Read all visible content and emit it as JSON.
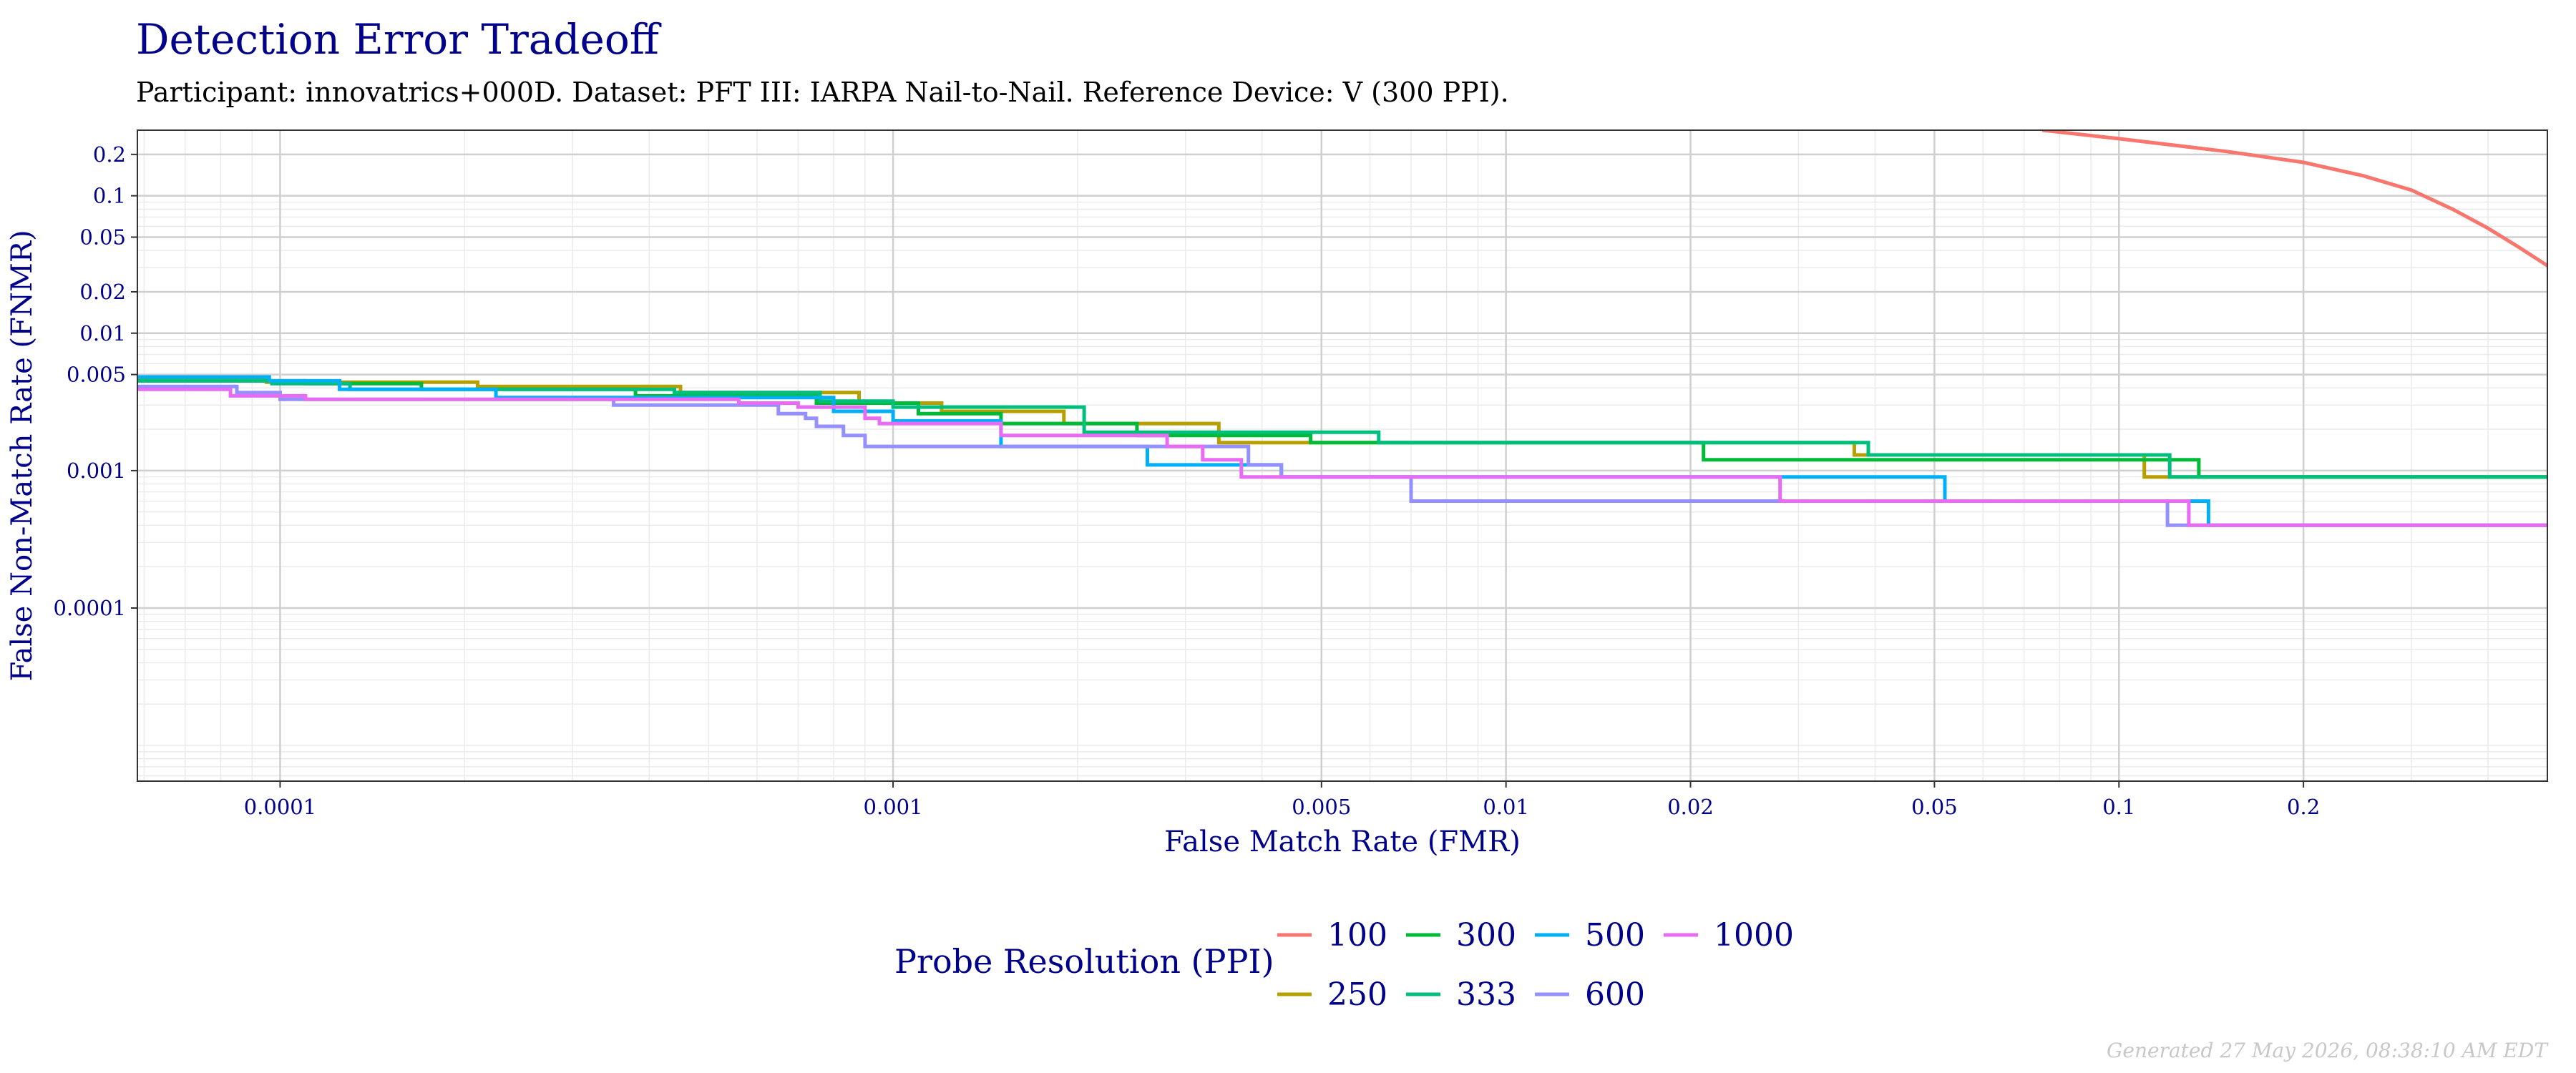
{
  "chart_data": {
    "type": "line",
    "title": "Detection Error Tradeoff",
    "subtitle": "Participant: innovatrics+000D. Dataset: PFT III: IARPA Nail-to-Nail. Reference Device: V (300 PPI).",
    "xlabel": "False Match Rate (FMR)",
    "ylabel": "False Non-Match Rate (FNMR)",
    "x_scale": "log",
    "y_scale": "log",
    "xlim": [
      5.85e-05,
      0.5
    ],
    "ylim": [
      5.5e-06,
      0.3
    ],
    "x_ticks": [
      {
        "value": 0.0001,
        "label": "0.0001"
      },
      {
        "value": 0.001,
        "label": "0.001"
      },
      {
        "value": 0.005,
        "label": "0.005"
      },
      {
        "value": 0.01,
        "label": "0.01"
      },
      {
        "value": 0.02,
        "label": "0.02"
      },
      {
        "value": 0.05,
        "label": "0.05"
      },
      {
        "value": 0.1,
        "label": "0.1"
      },
      {
        "value": 0.2,
        "label": "0.2"
      }
    ],
    "y_ticks": [
      {
        "value": 0.0001,
        "label": "0.0001"
      },
      {
        "value": 0.001,
        "label": "0.001"
      },
      {
        "value": 0.005,
        "label": "0.005"
      },
      {
        "value": 0.01,
        "label": "0.01"
      },
      {
        "value": 0.02,
        "label": "0.02"
      },
      {
        "value": 0.05,
        "label": "0.05"
      },
      {
        "value": 0.1,
        "label": "0.1"
      },
      {
        "value": 0.2,
        "label": "0.2"
      }
    ],
    "grid": true,
    "legend": {
      "title": "Probe Resolution (PPI)",
      "position": "bottom"
    },
    "series": [
      {
        "name": "100",
        "color": "#F8766D",
        "step": false,
        "points": [
          [
            0.075,
            0.3
          ],
          [
            0.1,
            0.26
          ],
          [
            0.15,
            0.21
          ],
          [
            0.2,
            0.175
          ],
          [
            0.25,
            0.14
          ],
          [
            0.3,
            0.11
          ],
          [
            0.35,
            0.08
          ],
          [
            0.4,
            0.058
          ],
          [
            0.45,
            0.042
          ],
          [
            0.5,
            0.031
          ]
        ]
      },
      {
        "name": "250",
        "color": "#B79F00",
        "step": true,
        "points": [
          [
            5.85e-05,
            0.0046
          ],
          [
            7.5e-05,
            0.0046
          ],
          [
            9.5e-05,
            0.0044
          ],
          [
            0.00021,
            0.0041
          ],
          [
            0.00045,
            0.0037
          ],
          [
            0.00088,
            0.0031
          ],
          [
            0.0012,
            0.0027
          ],
          [
            0.0019,
            0.0022
          ],
          [
            0.0034,
            0.0016
          ],
          [
            0.0049,
            0.0016
          ],
          [
            0.037,
            0.0013
          ],
          [
            0.11,
            0.0009
          ],
          [
            0.5,
            0.0009
          ]
        ]
      },
      {
        "name": "300",
        "color": "#00BA38",
        "step": true,
        "points": [
          [
            5.85e-05,
            0.0045
          ],
          [
            0.00011,
            0.0043
          ],
          [
            0.00017,
            0.0039
          ],
          [
            0.00038,
            0.0035
          ],
          [
            0.00075,
            0.0031
          ],
          [
            0.0011,
            0.0026
          ],
          [
            0.0015,
            0.0022
          ],
          [
            0.0025,
            0.0018
          ],
          [
            0.0048,
            0.0016
          ],
          [
            0.021,
            0.0012
          ],
          [
            0.038,
            0.0012
          ],
          [
            0.135,
            0.0009
          ],
          [
            0.5,
            0.0009
          ]
        ]
      },
      {
        "name": "333",
        "color": "#00BF7D",
        "step": true,
        "points": [
          [
            5.85e-05,
            0.0045
          ],
          [
            9.7e-05,
            0.0043
          ],
          [
            0.00013,
            0.0039
          ],
          [
            0.00044,
            0.0037
          ],
          [
            0.00076,
            0.0032
          ],
          [
            0.001,
            0.0029
          ],
          [
            0.00205,
            0.0019
          ],
          [
            0.0062,
            0.0016
          ],
          [
            0.039,
            0.0013
          ],
          [
            0.121,
            0.0009
          ],
          [
            0.5,
            0.0009
          ]
        ]
      },
      {
        "name": "500",
        "color": "#00B0F6",
        "step": true,
        "points": [
          [
            5.85e-05,
            0.0048
          ],
          [
            9.6e-05,
            0.0045
          ],
          [
            0.000125,
            0.0039
          ],
          [
            0.000225,
            0.0034
          ],
          [
            0.0008,
            0.0027
          ],
          [
            0.001,
            0.0023
          ],
          [
            0.0015,
            0.0015
          ],
          [
            0.0026,
            0.0011
          ],
          [
            0.0043,
            0.0009
          ],
          [
            0.052,
            0.0006
          ],
          [
            0.14,
            0.0004
          ],
          [
            0.5,
            0.0004
          ]
        ]
      },
      {
        "name": "600",
        "color": "#9590FF",
        "step": true,
        "points": [
          [
            5.85e-05,
            0.0041
          ],
          [
            8.5e-05,
            0.0037
          ],
          [
            0.0001,
            0.0033
          ],
          [
            0.00035,
            0.003
          ],
          [
            0.00065,
            0.0026
          ],
          [
            0.00072,
            0.0024
          ],
          [
            0.00075,
            0.0021
          ],
          [
            0.00083,
            0.0018
          ],
          [
            0.0009,
            0.0015
          ],
          [
            0.0038,
            0.0011
          ],
          [
            0.0043,
            0.0009
          ],
          [
            0.007,
            0.0006
          ],
          [
            0.12,
            0.0004
          ],
          [
            0.5,
            0.0004
          ]
        ]
      },
      {
        "name": "1000",
        "color": "#E76BF3",
        "step": true,
        "points": [
          [
            5.85e-05,
            0.0039
          ],
          [
            8.3e-05,
            0.0035
          ],
          [
            0.00011,
            0.0033
          ],
          [
            0.00056,
            0.0031
          ],
          [
            0.0007,
            0.0029
          ],
          [
            0.0009,
            0.0024
          ],
          [
            0.00095,
            0.0022
          ],
          [
            0.0015,
            0.0018
          ],
          [
            0.0028,
            0.0015
          ],
          [
            0.0032,
            0.0012
          ],
          [
            0.0037,
            0.0009
          ],
          [
            0.028,
            0.0006
          ],
          [
            0.13,
            0.0004
          ],
          [
            0.5,
            0.0004
          ]
        ]
      }
    ]
  },
  "footer": {
    "generated": "Generated 27 May 2026, 08:38:10 AM EDT"
  }
}
